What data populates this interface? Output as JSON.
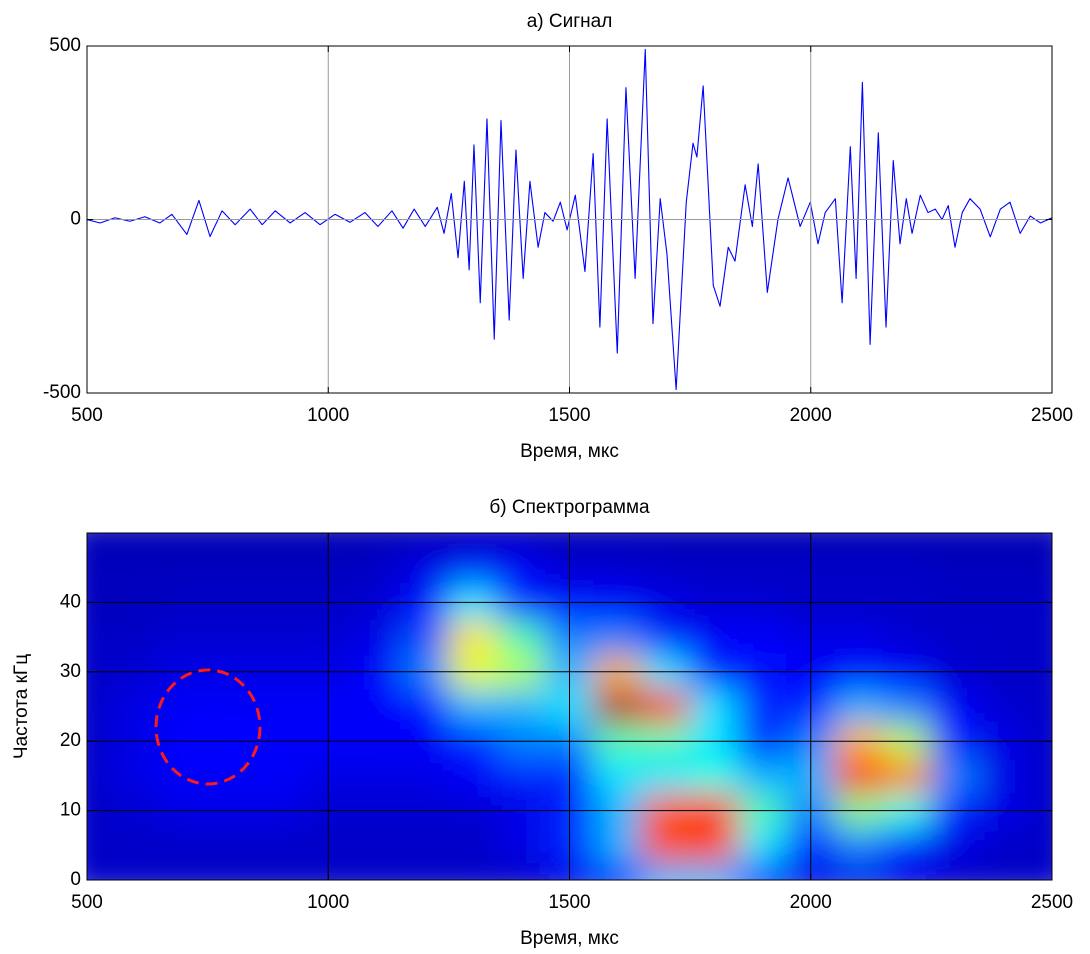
{
  "chart_data": [
    {
      "type": "line",
      "title": "а) Сигнал",
      "x_label": "Время, мкс",
      "x": [
        500,
        527,
        558,
        589,
        620,
        651,
        676,
        707,
        732,
        755,
        780,
        807,
        838,
        863,
        890,
        921,
        952,
        983,
        1014,
        1045,
        1076,
        1103,
        1132,
        1155,
        1178,
        1201,
        1226,
        1240,
        1255,
        1269,
        1282,
        1292,
        1302,
        1315,
        1329,
        1344,
        1358,
        1375,
        1389,
        1404,
        1418,
        1435,
        1449,
        1466,
        1481,
        1495,
        1512,
        1532,
        1549,
        1563,
        1578,
        1599,
        1617,
        1636,
        1657,
        1673,
        1688,
        1702,
        1721,
        1742,
        1756,
        1764,
        1777,
        1798,
        1812,
        1829,
        1843,
        1864,
        1879,
        1891,
        1910,
        1932,
        1953,
        1978,
        1999,
        2015,
        2030,
        2051,
        2065,
        2082,
        2094,
        2107,
        2123,
        2140,
        2156,
        2171,
        2185,
        2198,
        2210,
        2227,
        2243,
        2258,
        2272,
        2285,
        2299,
        2314,
        2330,
        2351,
        2372,
        2393,
        2413,
        2434,
        2455,
        2476,
        2500
      ],
      "series": [
        {
          "color": "#0000ff",
          "values": [
            0,
            -10,
            5,
            -5,
            8,
            -10,
            15,
            -43,
            55,
            -49,
            25,
            -15,
            30,
            -15,
            25,
            -10,
            20,
            -15,
            15,
            -8,
            20,
            -20,
            25,
            -25,
            30,
            -20,
            35,
            -40,
            75,
            -110,
            110,
            -145,
            215,
            -240,
            290,
            -345,
            285,
            -290,
            200,
            -170,
            110,
            -80,
            20,
            -5,
            50,
            -30,
            70,
            -150,
            190,
            -310,
            290,
            -385,
            380,
            -170,
            490,
            -300,
            60,
            -100,
            -490,
            50,
            220,
            180,
            385,
            -190,
            -250,
            -80,
            -120,
            100,
            -20,
            160,
            -210,
            0,
            120,
            -20,
            50,
            -70,
            20,
            60,
            -240,
            210,
            -170,
            395,
            -360,
            250,
            -310,
            170,
            -70,
            60,
            -40,
            70,
            20,
            30,
            0,
            40,
            -80,
            20,
            60,
            30,
            -50,
            30,
            50,
            -40,
            10,
            -10,
            5
          ]
        }
      ],
      "xlim": [
        500,
        2500
      ],
      "ylim": [
        -500,
        500
      ],
      "xticks": [
        500,
        1000,
        1500,
        2000,
        2500
      ],
      "yticks": [
        -500,
        0,
        500
      ],
      "grid": true
    },
    {
      "type": "heatmap",
      "title": "б) Спектрограмма",
      "x_label": "Время, мкс",
      "y_label": "Частота кГц",
      "colormap": "jet",
      "x": [
        500,
        600,
        700,
        800,
        900,
        1000,
        1100,
        1200,
        1300,
        1400,
        1500,
        1600,
        1700,
        1800,
        1900,
        2000,
        2100,
        2200,
        2300,
        2400,
        2500
      ],
      "y": [
        0,
        5,
        10,
        15,
        20,
        25,
        30,
        35,
        40,
        45,
        50
      ],
      "z": [
        [
          0.07,
          0.07,
          0.07,
          0.07,
          0.07,
          0.07,
          0.07,
          0.07,
          0.07,
          0.07,
          0.1,
          0.16,
          0.3,
          0.3,
          0.16,
          0.1,
          0.1,
          0.1,
          0.07,
          0.07,
          0.07
        ],
        [
          0.07,
          0.07,
          0.07,
          0.07,
          0.07,
          0.07,
          0.07,
          0.07,
          0.07,
          0.1,
          0.16,
          0.3,
          0.8,
          0.8,
          0.35,
          0.16,
          0.25,
          0.16,
          0.1,
          0.07,
          0.07
        ],
        [
          0.07,
          0.08,
          0.1,
          0.1,
          0.1,
          0.08,
          0.08,
          0.08,
          0.08,
          0.1,
          0.16,
          0.3,
          0.8,
          0.85,
          0.45,
          0.25,
          0.5,
          0.4,
          0.16,
          0.1,
          0.07
        ],
        [
          0.07,
          0.1,
          0.12,
          0.12,
          0.12,
          0.1,
          0.1,
          0.1,
          0.12,
          0.16,
          0.16,
          0.35,
          0.35,
          0.4,
          0.3,
          0.3,
          0.85,
          0.75,
          0.25,
          0.1,
          0.07
        ],
        [
          0.07,
          0.1,
          0.13,
          0.13,
          0.12,
          0.12,
          0.12,
          0.12,
          0.16,
          0.25,
          0.25,
          0.45,
          0.45,
          0.35,
          0.16,
          0.25,
          0.7,
          0.55,
          0.16,
          0.1,
          0.07
        ],
        [
          0.07,
          0.1,
          0.12,
          0.12,
          0.12,
          0.12,
          0.12,
          0.14,
          0.3,
          0.3,
          0.35,
          0.95,
          0.85,
          0.35,
          0.16,
          0.16,
          0.3,
          0.25,
          0.12,
          0.08,
          0.07
        ],
        [
          0.07,
          0.08,
          0.1,
          0.1,
          0.1,
          0.1,
          0.12,
          0.25,
          0.6,
          0.55,
          0.3,
          0.7,
          0.35,
          0.16,
          0.14,
          0.12,
          0.14,
          0.12,
          0.08,
          0.07,
          0.07
        ],
        [
          0.07,
          0.07,
          0.08,
          0.08,
          0.08,
          0.08,
          0.1,
          0.2,
          0.65,
          0.45,
          0.25,
          0.25,
          0.16,
          0.12,
          0.12,
          0.1,
          0.1,
          0.08,
          0.07,
          0.07,
          0.07
        ],
        [
          0.06,
          0.06,
          0.07,
          0.07,
          0.07,
          0.07,
          0.08,
          0.14,
          0.35,
          0.16,
          0.14,
          0.12,
          0.1,
          0.08,
          0.08,
          0.07,
          0.07,
          0.07,
          0.07,
          0.07,
          0.07
        ],
        [
          0.06,
          0.06,
          0.06,
          0.06,
          0.06,
          0.06,
          0.07,
          0.1,
          0.14,
          0.12,
          0.08,
          0.08,
          0.07,
          0.07,
          0.07,
          0.07,
          0.07,
          0.07,
          0.06,
          0.06,
          0.06
        ],
        [
          0.05,
          0.05,
          0.05,
          0.05,
          0.05,
          0.05,
          0.05,
          0.05,
          0.05,
          0.05,
          0.05,
          0.05,
          0.05,
          0.05,
          0.05,
          0.05,
          0.05,
          0.05,
          0.05,
          0.05,
          0.05
        ]
      ],
      "xlim": [
        500,
        2500
      ],
      "ylim": [
        0,
        50
      ],
      "xticks": [
        500,
        1000,
        1500,
        2000,
        2500
      ],
      "yticks": [
        0,
        10,
        20,
        30,
        40
      ],
      "grid": true
    }
  ]
}
